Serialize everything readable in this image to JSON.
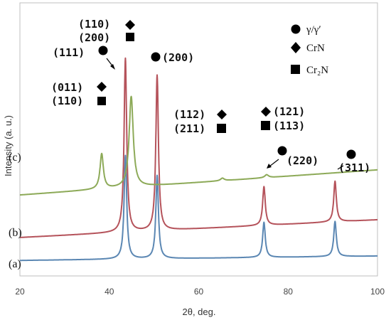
{
  "chart_data": {
    "type": "line",
    "xlabel": "2θ, deg.",
    "ylabel": "Intensity (a. u.)",
    "xlim": [
      20,
      100
    ],
    "xticks": [
      20,
      40,
      60,
      80,
      100
    ],
    "grid": false,
    "legend_position": "top-right",
    "legend": [
      {
        "marker": "circle",
        "label": "γ/γ′"
      },
      {
        "marker": "diamond",
        "label": "CrN"
      },
      {
        "marker": "square",
        "label": "Cr₂N"
      }
    ],
    "series": [
      {
        "name": "(a)",
        "color": "#5b87b3",
        "baseline": 0.38,
        "baseline_slope": 0.0015,
        "peaks": [
          {
            "x": 43.6,
            "height": 2.8,
            "width": 0.35
          },
          {
            "x": 50.7,
            "height": 2.25,
            "width": 0.35
          },
          {
            "x": 74.6,
            "height": 0.95,
            "width": 0.35
          },
          {
            "x": 90.5,
            "height": 0.95,
            "width": 0.35
          }
        ]
      },
      {
        "name": "(b)",
        "color": "#b5535b",
        "baseline": 1.0,
        "baseline_slope": 0.006,
        "peaks": [
          {
            "x": 43.6,
            "height": 4.7,
            "width": 0.35
          },
          {
            "x": 50.7,
            "height": 4.2,
            "width": 0.35
          },
          {
            "x": 74.6,
            "height": 1.05,
            "width": 0.35
          },
          {
            "x": 90.5,
            "height": 1.1,
            "width": 0.35
          }
        ]
      },
      {
        "name": "(c)",
        "color": "#8daa58",
        "baseline": 2.15,
        "baseline_slope": 0.0085,
        "peaks": [
          {
            "x": 38.3,
            "height": 0.95,
            "width": 0.45
          },
          {
            "x": 44.9,
            "height": 2.45,
            "width": 0.55
          },
          {
            "x": 65.3,
            "height": 0.07,
            "width": 0.5
          },
          {
            "x": 75.2,
            "height": 0.08,
            "width": 0.5
          }
        ]
      }
    ],
    "peak_labels": [
      {
        "text": "(110)",
        "marker": "diamond",
        "x": 44.9
      },
      {
        "text": "(200)",
        "marker": "square",
        "x": 44.9
      },
      {
        "text": "(111)",
        "marker": "circle",
        "x": 43.6
      },
      {
        "text": "(200)",
        "marker": "circle",
        "x": 50.7
      },
      {
        "text": "(011)",
        "marker": "diamond",
        "x": 38.3
      },
      {
        "text": "(110)",
        "marker": "square",
        "x": 38.3
      },
      {
        "text": "(112)",
        "marker": "diamond",
        "x": 65.3
      },
      {
        "text": "(211)",
        "marker": "square",
        "x": 65.3
      },
      {
        "text": "(121)",
        "marker": "diamond",
        "x": 75.2
      },
      {
        "text": "(113)",
        "marker": "square",
        "x": 75.2
      },
      {
        "text": "(220)",
        "marker": "circle",
        "x": 74.6
      },
      {
        "text": "(311)",
        "marker": "circle",
        "x": 90.5
      }
    ]
  }
}
